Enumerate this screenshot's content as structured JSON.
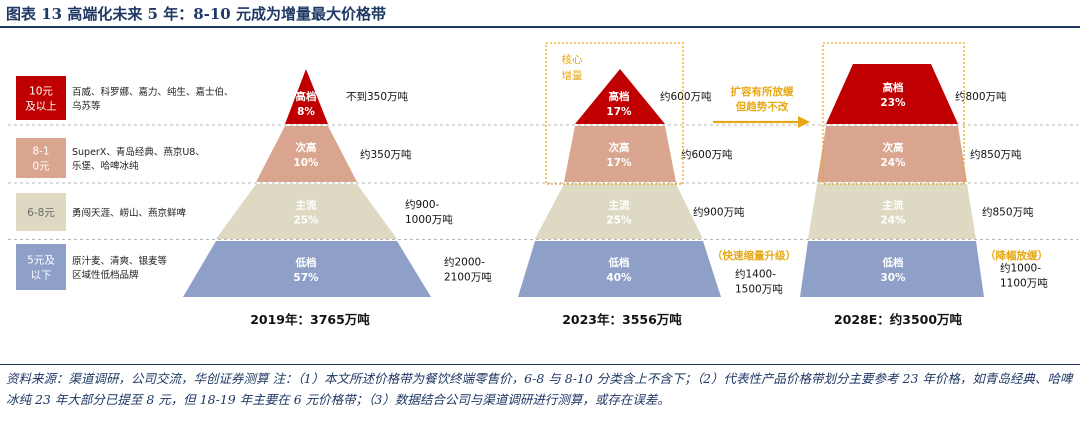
{
  "title": "图表 13  高端化未来 5 年：8-10 元成为增量最大价格带",
  "chart_data": {
    "type": "pyramid",
    "unit": "万吨",
    "tiers": [
      {
        "key": "high",
        "band": "10元及以上",
        "brands": [
          "百威、科罗娜、嘉力、纯生、嘉士伯、",
          "乌苏等"
        ]
      },
      {
        "key": "sub",
        "band": "8-10元",
        "brands": [
          "SuperX、青岛经典、燕京U8、",
          "乐堡、哈啤冰纯"
        ]
      },
      {
        "key": "main",
        "band": "6-8元",
        "brands": [
          "勇闯天涯、崂山、燕京鲜啤"
        ]
      },
      {
        "key": "low",
        "band": "5元及以下",
        "brands": [
          "原汁麦、清爽、银麦等",
          "区域性低档品牌"
        ]
      }
    ],
    "years": [
      {
        "label": "2019年：3765万吨",
        "year": "2019",
        "total": 3765,
        "tiers": [
          {
            "name": "高档",
            "share": 8,
            "share_label": "8%",
            "volume": [
              "不到350万吨"
            ]
          },
          {
            "name": "次高",
            "share": 10,
            "share_label": "10%",
            "volume": [
              "约350万吨"
            ]
          },
          {
            "name": "主流",
            "share": 25,
            "share_label": "25%",
            "volume": [
              "约900-",
              "1000万吨"
            ]
          },
          {
            "name": "低档",
            "share": 57,
            "share_label": "57%",
            "volume": [
              "约2000-",
              "2100万吨"
            ]
          }
        ]
      },
      {
        "label": "2023年：3556万吨",
        "year": "2023",
        "total": 3556,
        "tiers": [
          {
            "name": "高档",
            "share": 17,
            "share_label": "17%",
            "volume": [
              "约600万吨"
            ]
          },
          {
            "name": "次高",
            "share": 17,
            "share_label": "17%",
            "volume": [
              "约600万吨"
            ]
          },
          {
            "name": "主流",
            "share": 25,
            "share_label": "25%",
            "volume": [
              "约900万吨"
            ]
          },
          {
            "name": "低档",
            "share": 40,
            "share_label": "40%",
            "volume": [
              "约1400-",
              "1500万吨"
            ]
          }
        ]
      },
      {
        "label": "2028E：约3500万吨",
        "year": "2028E",
        "total": 3500,
        "tiers": [
          {
            "name": "高档",
            "share": 23,
            "share_label": "23%",
            "volume": [
              "约800万吨"
            ]
          },
          {
            "name": "次高",
            "share": 24,
            "share_label": "24%",
            "volume": [
              "约850万吨"
            ]
          },
          {
            "name": "主流",
            "share": 24,
            "share_label": "24%",
            "volume": [
              "约850万吨"
            ]
          },
          {
            "name": "低档",
            "share": 30,
            "share_label": "30%",
            "volume": [
              "约1000-",
              "1100万吨"
            ]
          }
        ]
      }
    ],
    "annotations": {
      "core_growth": [
        "核心",
        "增量"
      ],
      "expand_trend": [
        "扩容有所放缓",
        "但趋势不改"
      ],
      "low_2023": "（快速缩量升级）",
      "low_2028": "（降幅放缓）"
    },
    "colors": {
      "high": "#c00000",
      "sub": "#d9a58e",
      "main": "#ddd9c3",
      "low": "#8ea0c8",
      "annotation": "#e6a817",
      "title": "#1f3864"
    }
  },
  "footnote": "资料来源：渠道调研，公司交流，华创证券测算  注：（1）本文所述价格带为餐饮终端零售价，6-8 与 8-10 分类含上不含下；（2）代表性产品价格带划分主要参考 23 年价格，如青岛经典、哈啤冰纯 23 年大部分已提至 8 元，但 18-19 年主要在 6 元价格带；（3）数据结合公司与渠道调研进行测算，或存在误差。"
}
